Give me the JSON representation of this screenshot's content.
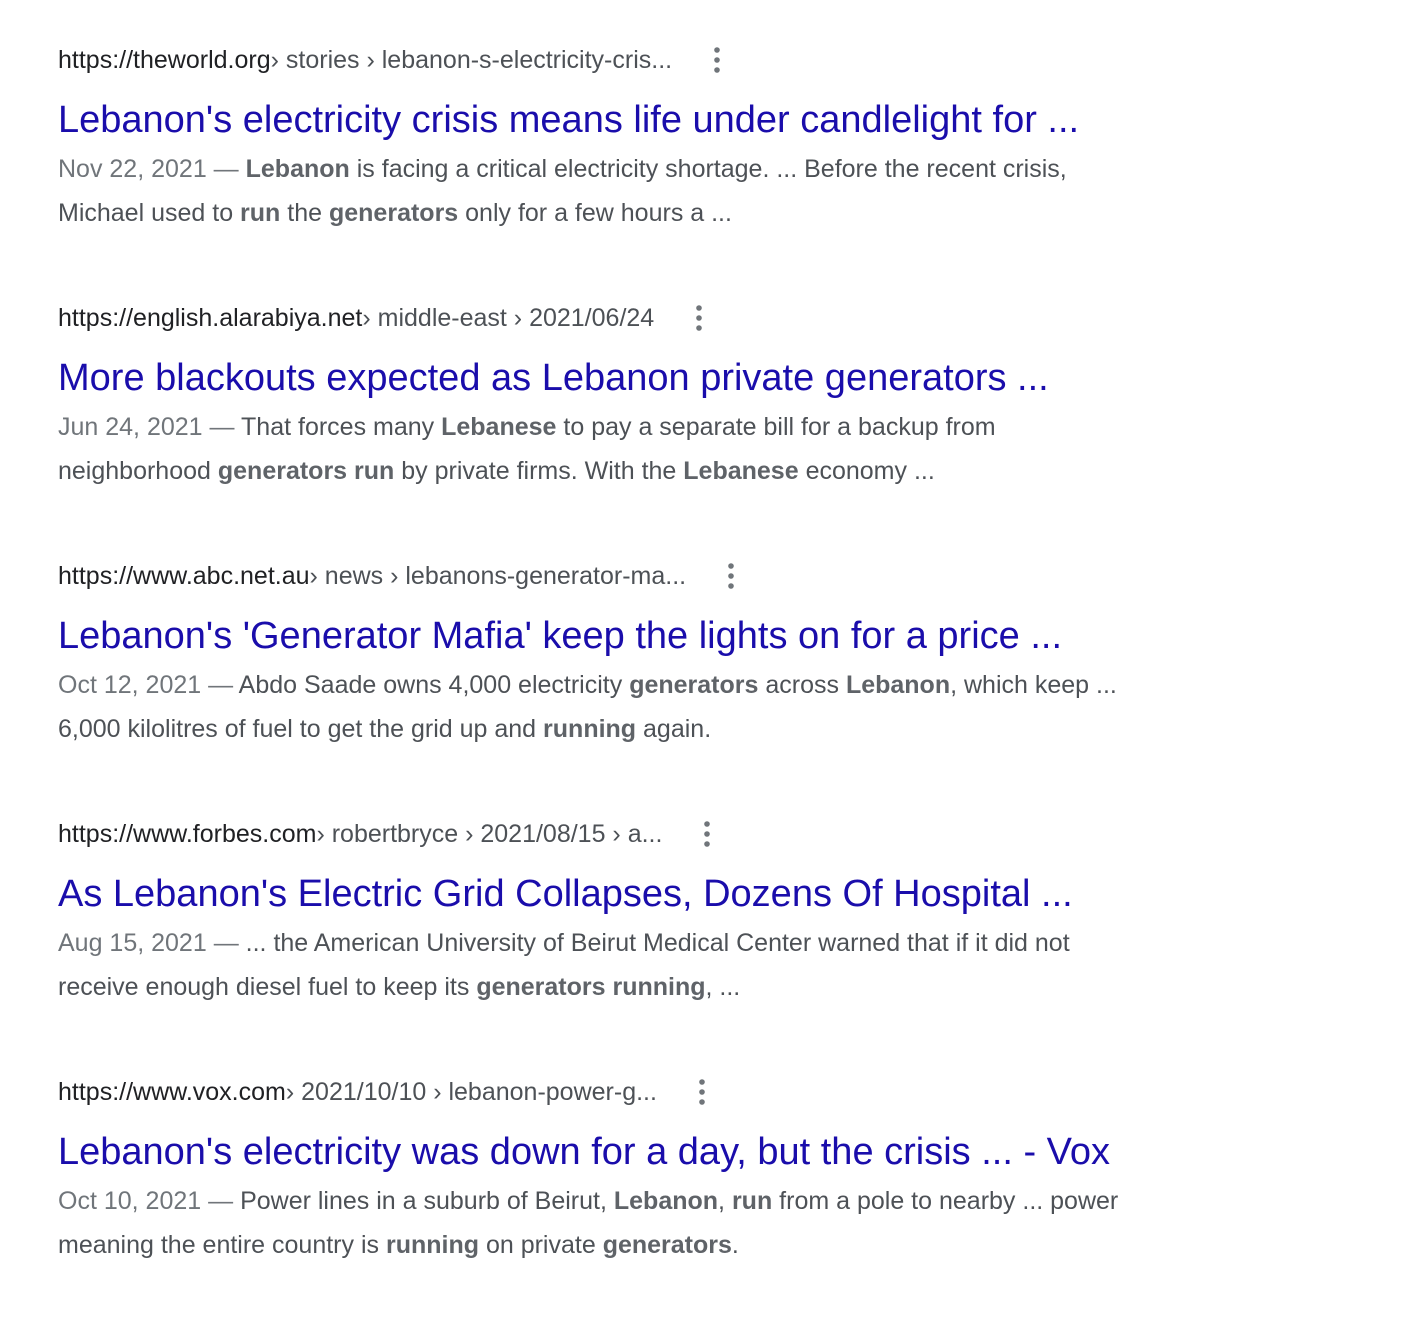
{
  "results": [
    {
      "domain": "https://theworld.org",
      "path": " › stories › lebanon-s-electricity-cris...",
      "menu_icon": "three-dot-vertical-icon",
      "title": "Lebanon's electricity crisis means life under candlelight for ...",
      "date": "Nov 22, 2021",
      "date_sep": " — ",
      "line1": [
        {
          "t": "Lebanon",
          "b": true
        },
        {
          "t": " is facing a critical electricity shortage. ... Before the recent crisis,",
          "b": false
        }
      ],
      "line2": [
        {
          "t": "Michael used to ",
          "b": false
        },
        {
          "t": "run",
          "b": true
        },
        {
          "t": " the ",
          "b": false
        },
        {
          "t": "generators",
          "b": true
        },
        {
          "t": " only for a few hours a ...",
          "b": false
        }
      ]
    },
    {
      "domain": "https://english.alarabiya.net",
      "path": " › middle-east › 2021/06/24",
      "menu_icon": "three-dot-vertical-icon",
      "title": "More blackouts expected as Lebanon private generators ...",
      "date": "Jun 24, 2021",
      "date_sep": " — ",
      "line1": [
        {
          "t": "That forces many ",
          "b": false
        },
        {
          "t": "Lebanese",
          "b": true
        },
        {
          "t": " to pay a separate bill for a backup from",
          "b": false
        }
      ],
      "line2": [
        {
          "t": "neighborhood ",
          "b": false
        },
        {
          "t": "generators run",
          "b": true
        },
        {
          "t": " by private firms. With the ",
          "b": false
        },
        {
          "t": "Lebanese",
          "b": true
        },
        {
          "t": " economy ...",
          "b": false
        }
      ]
    },
    {
      "domain": "https://www.abc.net.au",
      "path": " › news › lebanons-generator-ma...",
      "menu_icon": "three-dot-vertical-icon",
      "title": "Lebanon's 'Generator Mafia' keep the lights on for a price ...",
      "date": "Oct 12, 2021",
      "date_sep": " — ",
      "line1": [
        {
          "t": "Abdo Saade owns 4,000 electricity ",
          "b": false
        },
        {
          "t": "generators",
          "b": true
        },
        {
          "t": " across ",
          "b": false
        },
        {
          "t": "Lebanon",
          "b": true
        },
        {
          "t": ", which keep ...",
          "b": false
        }
      ],
      "line2": [
        {
          "t": "6,000 kilolitres of fuel to get the grid up and ",
          "b": false
        },
        {
          "t": "running",
          "b": true
        },
        {
          "t": " again.",
          "b": false
        }
      ]
    },
    {
      "domain": "https://www.forbes.com",
      "path": " › robertbryce › 2021/08/15 › a...",
      "menu_icon": "three-dot-vertical-icon",
      "title": "As Lebanon's Electric Grid Collapses, Dozens Of Hospital ...",
      "date": "Aug 15, 2021",
      "date_sep": " — ",
      "line1": [
        {
          "t": "... the American University of Beirut Medical Center warned that if it did not",
          "b": false
        }
      ],
      "line2": [
        {
          "t": "receive enough diesel fuel to keep its ",
          "b": false
        },
        {
          "t": "generators running",
          "b": true
        },
        {
          "t": ", ...",
          "b": false
        }
      ]
    },
    {
      "domain": "https://www.vox.com",
      "path": " › 2021/10/10 › lebanon-power-g...",
      "menu_icon": "three-dot-vertical-icon",
      "title": "Lebanon's electricity was down for a day, but the crisis ... - Vox",
      "date": "Oct 10, 2021",
      "date_sep": " — ",
      "line1": [
        {
          "t": "Power lines in a suburb of Beirut, ",
          "b": false
        },
        {
          "t": "Lebanon",
          "b": true
        },
        {
          "t": ", ",
          "b": false
        },
        {
          "t": "run",
          "b": true
        },
        {
          "t": " from a pole to nearby ... power",
          "b": false
        }
      ],
      "line2": [
        {
          "t": "meaning the entire country is ",
          "b": false
        },
        {
          "t": "running",
          "b": true
        },
        {
          "t": " on private ",
          "b": false
        },
        {
          "t": "generators",
          "b": true
        },
        {
          "t": ".",
          "b": false
        }
      ]
    }
  ]
}
